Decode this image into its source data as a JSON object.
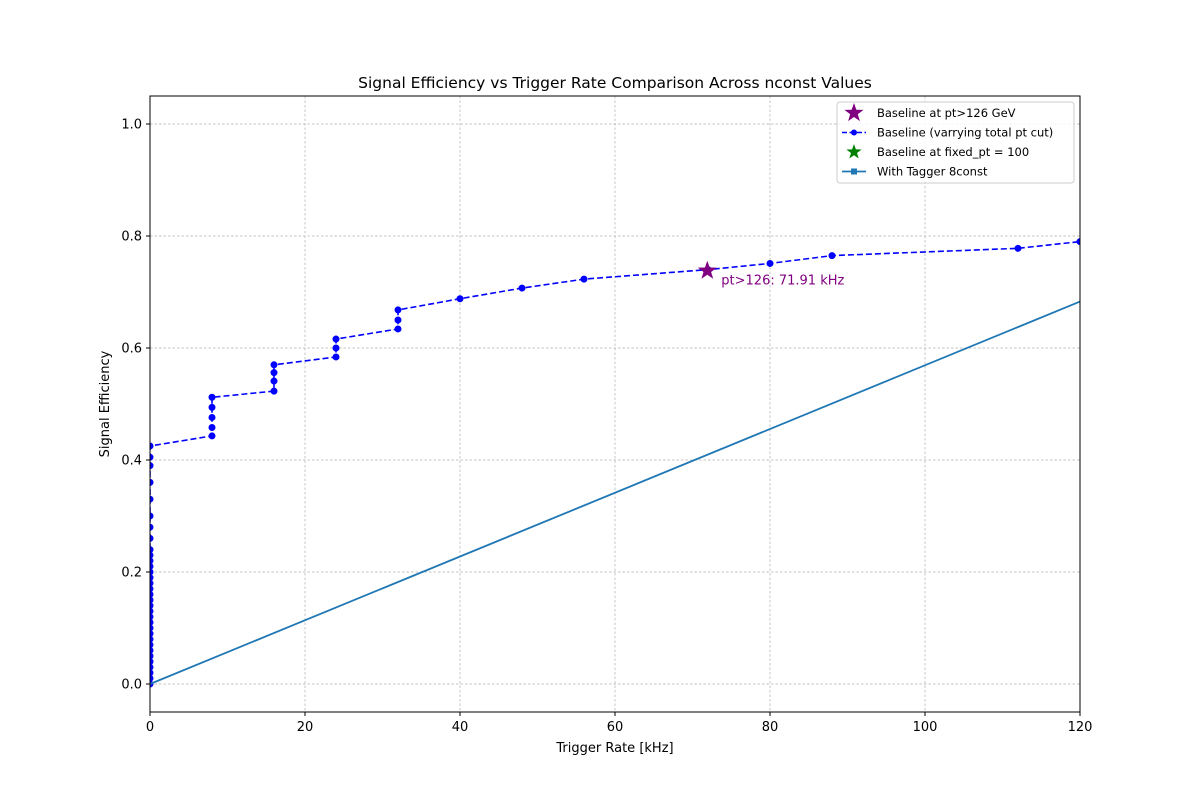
{
  "chart_data": {
    "type": "line",
    "title": "Signal Efficiency vs Trigger Rate Comparison Across nconst Values",
    "xlabel": "Trigger Rate [kHz]",
    "ylabel": "Signal Efficiency",
    "xlim": [
      0,
      120
    ],
    "ylim": [
      -0.05,
      1.05
    ],
    "xticks": [
      "0",
      "20",
      "40",
      "60",
      "80",
      "100",
      "120"
    ],
    "yticks": [
      "0.0",
      "0.2",
      "0.4",
      "0.6",
      "0.8",
      "1.0"
    ],
    "grid": true,
    "legend_position": "top-right",
    "colors": {
      "baseline_curve": "#0000ff",
      "baseline_star": "#800080",
      "fixed_pt_star": "#008000",
      "tagger": "#1f77b4",
      "grid": "#b0b0b0"
    },
    "series": [
      {
        "name": "Baseline at pt>126 GeV",
        "kind": "star",
        "color": "#800080",
        "x": [
          71.91
        ],
        "y": [
          0.738
        ]
      },
      {
        "name": "Baseline (varrying total pt cut)",
        "kind": "dashed-markers",
        "color": "#0000ff",
        "x": [
          0,
          0,
          0,
          0,
          0,
          0,
          0,
          0,
          0,
          0,
          0,
          0,
          0,
          0,
          0,
          0,
          0,
          0,
          0,
          0,
          0,
          0,
          0,
          0,
          0,
          0,
          0,
          0,
          0,
          0,
          0,
          0,
          0,
          8,
          8,
          8,
          8,
          8,
          16,
          16,
          16,
          16,
          24,
          24,
          24,
          32,
          32,
          32,
          40,
          48,
          56,
          72,
          80,
          88,
          112,
          120
        ],
        "y": [
          0.0,
          0.01,
          0.02,
          0.03,
          0.04,
          0.05,
          0.06,
          0.07,
          0.08,
          0.09,
          0.1,
          0.11,
          0.12,
          0.13,
          0.14,
          0.15,
          0.16,
          0.17,
          0.18,
          0.19,
          0.2,
          0.21,
          0.22,
          0.23,
          0.24,
          0.26,
          0.28,
          0.3,
          0.33,
          0.36,
          0.39,
          0.405,
          0.425,
          0.443,
          0.458,
          0.476,
          0.494,
          0.512,
          0.523,
          0.541,
          0.556,
          0.57,
          0.584,
          0.6,
          0.616,
          0.634,
          0.65,
          0.668,
          0.688,
          0.707,
          0.723,
          0.74,
          0.751,
          0.765,
          0.778,
          0.79
        ]
      },
      {
        "name": "Baseline at fixed_pt = 100",
        "kind": "star-legend-only",
        "color": "#008000",
        "x": [],
        "y": []
      },
      {
        "name": "With Tagger 8const",
        "kind": "line",
        "color": "#1f77b4",
        "x": [
          0,
          120
        ],
        "y": [
          0.0,
          0.683
        ]
      }
    ],
    "annotations": [
      {
        "text": "pt>126: 71.91 kHz",
        "x": 71.91,
        "y": 0.738,
        "color": "#800080"
      }
    ]
  }
}
